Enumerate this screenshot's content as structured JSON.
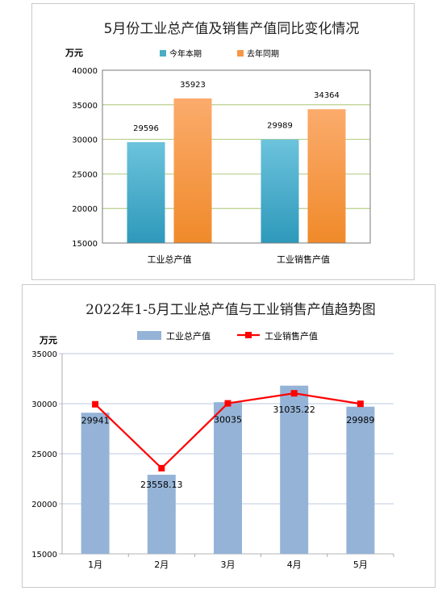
{
  "chart_data": [
    {
      "type": "bar",
      "title": "5月份工业总产值及销售产值同比变化情况",
      "unit_label": "万元",
      "categories": [
        "工业总产值",
        "工业销售产值"
      ],
      "series": [
        {
          "name": "今年本期",
          "values": [
            29596,
            29989
          ],
          "color": "#4bacc6"
        },
        {
          "name": "去年同期",
          "values": [
            35923,
            34364
          ],
          "color": "#f79646"
        }
      ],
      "ylim": [
        15000,
        40000
      ],
      "yticks": [
        15000,
        20000,
        25000,
        30000,
        35000,
        40000
      ],
      "ytick_labels": [
        "15000",
        "20000",
        "25000",
        "30000",
        "35000",
        "40000"
      ],
      "data_labels": [
        [
          "29596",
          "29989"
        ],
        [
          "35923",
          "34364"
        ]
      ],
      "grid": true,
      "legend": "top"
    },
    {
      "type": "bar",
      "title": "2022年1-5月工业总产值与工业销售产值趋势图",
      "unit_label": "万元",
      "categories": [
        "1月",
        "2月",
        "3月",
        "4月",
        "5月"
      ],
      "series": [
        {
          "name": "工业总产值",
          "kind": "bar",
          "values": [
            29100,
            22900,
            30150,
            31800,
            29700
          ],
          "color": "#95b3d7"
        },
        {
          "name": "工业销售产值",
          "kind": "line",
          "values": [
            29941,
            23558.13,
            30035,
            31035.22,
            29989
          ],
          "color": "#ff0000"
        }
      ],
      "data_labels": [
        "29941",
        "23558.13",
        "30035",
        "31035.22",
        "29989"
      ],
      "ylim": [
        15000,
        35000
      ],
      "yticks": [
        15000,
        20000,
        25000,
        30000,
        35000
      ],
      "ytick_labels": [
        "15000",
        "20000",
        "25000",
        "30000",
        "35000"
      ],
      "grid": true,
      "legend": "top"
    }
  ]
}
